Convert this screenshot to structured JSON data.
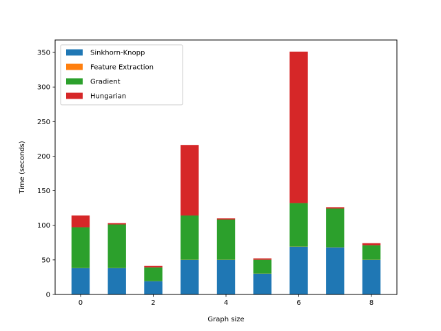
{
  "chart_data": {
    "type": "bar",
    "stacked": true,
    "x": [
      0,
      1,
      2,
      3,
      4,
      5,
      6,
      7,
      8
    ],
    "xlabel": "Graph size",
    "ylabel": "Time (seconds)",
    "xticks": [
      0,
      2,
      4,
      6,
      8
    ],
    "yticks": [
      0,
      50,
      100,
      150,
      200,
      250,
      300,
      350
    ],
    "xlim": [
      -0.7,
      8.7
    ],
    "ylim": [
      0,
      368
    ],
    "legend_position": "top-left",
    "series": [
      {
        "name": "Sinkhorn-Knopp",
        "color": "#1f77b4",
        "values": [
          38,
          38,
          19,
          50,
          50,
          30,
          69,
          68,
          50
        ]
      },
      {
        "name": "Feature Extraction",
        "color": "#ff7f0e",
        "values": [
          0.2,
          0.2,
          0.2,
          0.2,
          0.2,
          0.2,
          0.2,
          0.2,
          0.2
        ]
      },
      {
        "name": "Gradient",
        "color": "#2ca02c",
        "values": [
          59,
          63,
          20,
          64,
          58,
          20,
          63,
          56,
          21
        ]
      },
      {
        "name": "Hungarian",
        "color": "#d62728",
        "values": [
          17,
          2,
          2,
          102,
          2,
          2,
          219,
          2,
          3
        ]
      }
    ]
  }
}
